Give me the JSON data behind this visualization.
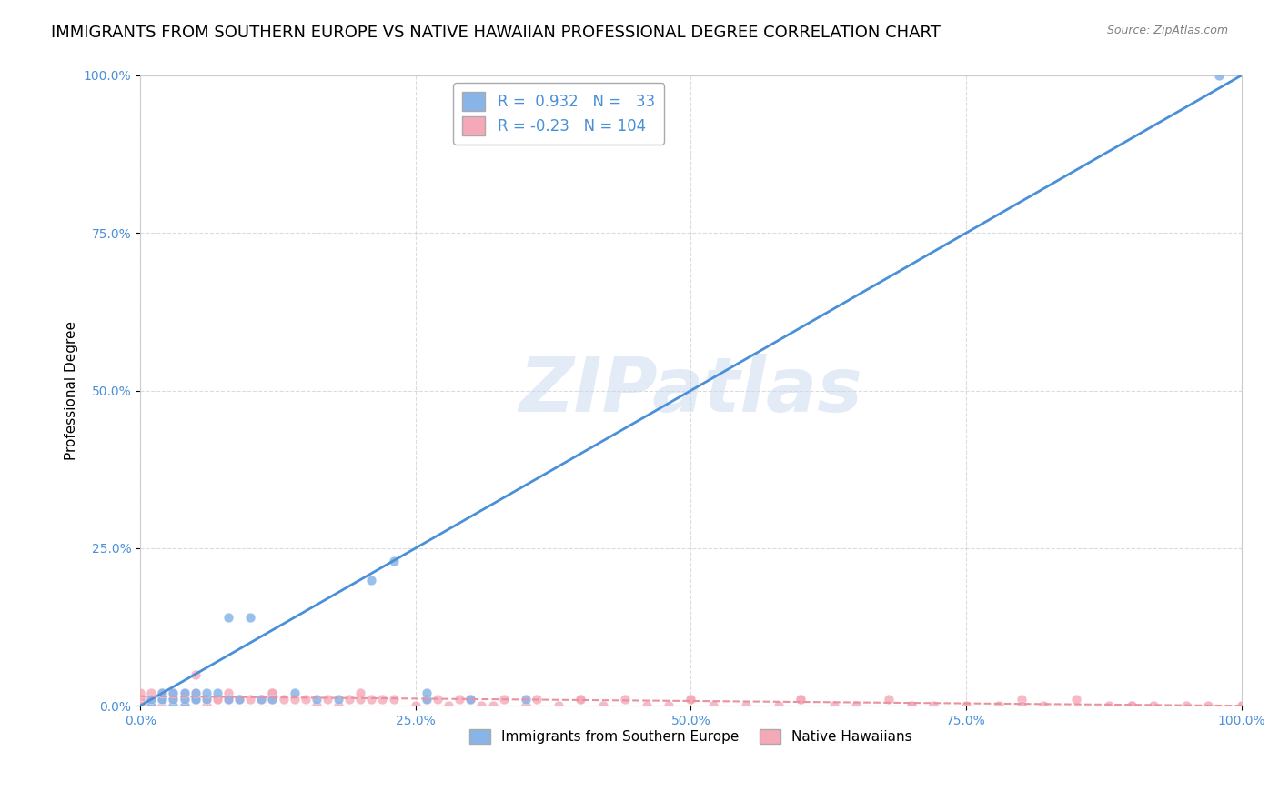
{
  "title": "IMMIGRANTS FROM SOUTHERN EUROPE VS NATIVE HAWAIIAN PROFESSIONAL DEGREE CORRELATION CHART",
  "source": "Source: ZipAtlas.com",
  "xlabel": "",
  "ylabel": "Professional Degree",
  "watermark": "ZIPatlas",
  "blue_R": 0.932,
  "blue_N": 33,
  "pink_R": -0.23,
  "pink_N": 104,
  "blue_color": "#89b4e8",
  "pink_color": "#f5a8b8",
  "blue_line_color": "#4a90d9",
  "pink_line_color": "#f5a8b8",
  "xlim": [
    0.0,
    1.0
  ],
  "ylim": [
    0.0,
    1.0
  ],
  "xtick_labels": [
    "0.0%",
    "25.0%",
    "50.0%",
    "75.0%",
    "100.0%"
  ],
  "xtick_vals": [
    0.0,
    0.25,
    0.5,
    0.75,
    1.0
  ],
  "ytick_labels": [
    "0.0%",
    "25.0%",
    "50.0%",
    "75.0%",
    "100.0%"
  ],
  "ytick_vals": [
    0.0,
    0.25,
    0.5,
    0.75,
    1.0
  ],
  "legend_labels": [
    "Immigrants from Southern Europe",
    "Native Hawaiians"
  ],
  "blue_scatter_x": [
    0.01,
    0.01,
    0.02,
    0.02,
    0.02,
    0.03,
    0.03,
    0.03,
    0.04,
    0.04,
    0.04,
    0.05,
    0.05,
    0.05,
    0.06,
    0.06,
    0.07,
    0.08,
    0.08,
    0.09,
    0.1,
    0.11,
    0.12,
    0.14,
    0.16,
    0.18,
    0.21,
    0.23,
    0.26,
    0.26,
    0.3,
    0.35,
    0.98
  ],
  "blue_scatter_y": [
    0.0,
    0.01,
    0.01,
    0.01,
    0.02,
    0.0,
    0.01,
    0.02,
    0.0,
    0.01,
    0.02,
    0.01,
    0.01,
    0.02,
    0.01,
    0.02,
    0.02,
    0.14,
    0.01,
    0.01,
    0.14,
    0.01,
    0.01,
    0.02,
    0.01,
    0.01,
    0.2,
    0.23,
    0.01,
    0.02,
    0.01,
    0.01,
    1.0
  ],
  "pink_scatter_x": [
    0.0,
    0.0,
    0.0,
    0.0,
    0.0,
    0.0,
    0.0,
    0.0,
    0.0,
    0.01,
    0.01,
    0.01,
    0.01,
    0.01,
    0.01,
    0.01,
    0.01,
    0.02,
    0.02,
    0.02,
    0.02,
    0.02,
    0.02,
    0.03,
    0.03,
    0.03,
    0.04,
    0.04,
    0.05,
    0.05,
    0.05,
    0.06,
    0.06,
    0.07,
    0.07,
    0.08,
    0.08,
    0.09,
    0.1,
    0.11,
    0.12,
    0.12,
    0.13,
    0.14,
    0.15,
    0.16,
    0.17,
    0.18,
    0.19,
    0.2,
    0.21,
    0.22,
    0.23,
    0.25,
    0.26,
    0.27,
    0.28,
    0.29,
    0.3,
    0.31,
    0.32,
    0.33,
    0.35,
    0.36,
    0.38,
    0.4,
    0.42,
    0.44,
    0.46,
    0.48,
    0.5,
    0.52,
    0.55,
    0.58,
    0.6,
    0.63,
    0.65,
    0.68,
    0.7,
    0.72,
    0.75,
    0.78,
    0.8,
    0.82,
    0.85,
    0.88,
    0.9,
    0.92,
    0.95,
    0.97,
    1.0,
    0.04,
    0.08,
    0.12,
    0.2,
    0.3,
    0.4,
    0.5,
    0.6,
    0.7,
    0.8,
    0.9,
    1.0,
    0.05
  ],
  "pink_scatter_y": [
    0.01,
    0.01,
    0.01,
    0.01,
    0.01,
    0.01,
    0.0,
    0.0,
    0.02,
    0.01,
    0.01,
    0.01,
    0.01,
    0.01,
    0.01,
    0.0,
    0.02,
    0.0,
    0.01,
    0.01,
    0.01,
    0.01,
    0.02,
    0.01,
    0.01,
    0.02,
    0.0,
    0.01,
    0.01,
    0.01,
    0.02,
    0.0,
    0.01,
    0.01,
    0.01,
    0.01,
    0.01,
    0.01,
    0.01,
    0.01,
    0.01,
    0.02,
    0.01,
    0.01,
    0.01,
    0.0,
    0.01,
    0.0,
    0.01,
    0.01,
    0.01,
    0.01,
    0.01,
    0.0,
    0.01,
    0.01,
    0.0,
    0.01,
    0.01,
    0.0,
    0.0,
    0.01,
    0.0,
    0.01,
    0.0,
    0.01,
    0.0,
    0.01,
    0.0,
    0.0,
    0.01,
    0.0,
    0.0,
    0.0,
    0.01,
    0.0,
    0.0,
    0.01,
    0.0,
    0.0,
    0.0,
    0.0,
    0.01,
    0.0,
    0.01,
    0.0,
    0.0,
    0.0,
    0.0,
    0.0,
    0.0,
    0.02,
    0.02,
    0.02,
    0.02,
    0.01,
    0.01,
    0.01,
    0.01,
    0.0,
    0.0,
    0.0,
    0.0,
    0.05
  ],
  "blue_trendline_x": [
    0.0,
    1.0
  ],
  "blue_trendline_y": [
    0.0,
    1.0
  ],
  "pink_trendline_x": [
    0.0,
    1.0
  ],
  "pink_trendline_y": [
    0.015,
    0.0
  ],
  "background_color": "#ffffff",
  "grid_color": "#cccccc",
  "title_fontsize": 13,
  "axis_label_fontsize": 11,
  "tick_fontsize": 10,
  "watermark_color": "#c8d8f0",
  "watermark_fontsize": 60
}
